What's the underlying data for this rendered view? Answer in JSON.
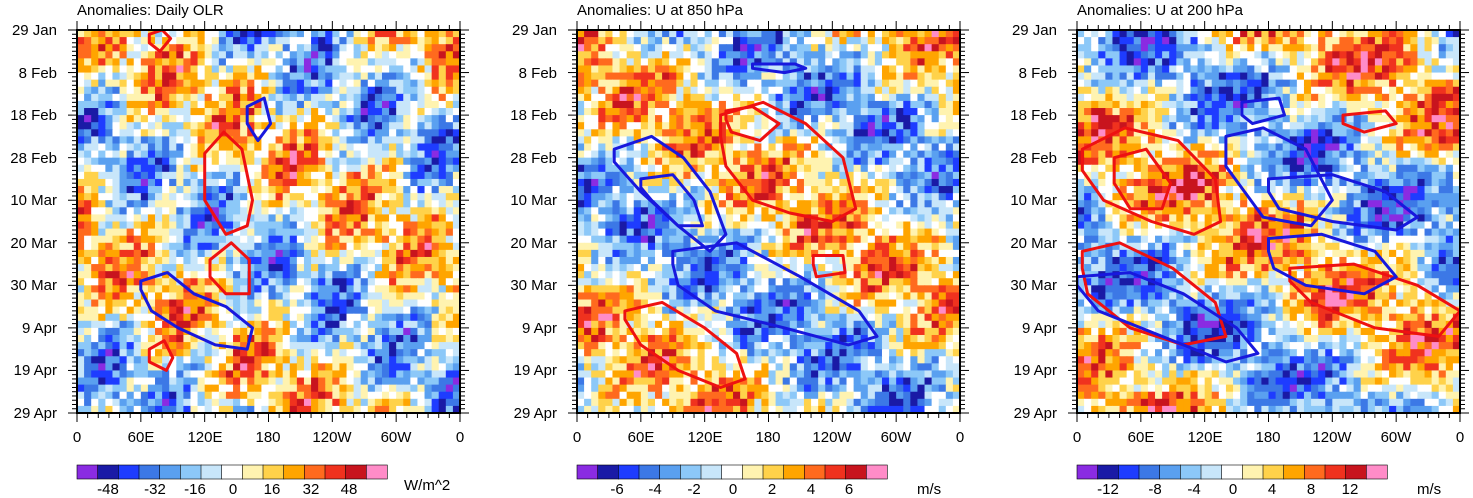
{
  "chart_data": [
    {
      "type": "heatmap",
      "title": "Anomalies: Daily OLR",
      "xlabel": "",
      "ylabel": "",
      "x_tick_labels": [
        "0",
        "60E",
        "120E",
        "180",
        "120W",
        "60W",
        "0"
      ],
      "y_tick_labels": [
        "29 Jan",
        "8 Feb",
        "18 Feb",
        "28 Feb",
        "10 Mar",
        "20 Mar",
        "30 Mar",
        "9 Apr",
        "19 Apr",
        "29 Apr"
      ],
      "colorbar": {
        "tick_labels": [
          "-48",
          "-32",
          "-16",
          "0",
          "16",
          "32",
          "48"
        ],
        "units": "W/m^2",
        "levels": [
          -56,
          -48,
          -40,
          -32,
          -24,
          -16,
          -8,
          0,
          8,
          16,
          24,
          32,
          40,
          48,
          56
        ]
      },
      "contours": {
        "red": [
          {
            "lon": [
              120,
              138,
              155,
              165,
              160,
              140,
              120
            ],
            "day": [
              29,
              24,
              28,
              40,
              46,
              48,
              40
            ]
          },
          {
            "lon": [
              125,
              145,
              162,
              162,
              140,
              125
            ],
            "day": [
              54,
              50,
              54,
              62,
              62,
              58
            ]
          },
          {
            "lon": [
              68,
              80,
              88,
              78,
              68
            ],
            "day": [
              1,
              0,
              2,
              5,
              3
            ]
          },
          {
            "lon": [
              68,
              82,
              90,
              84,
              68
            ],
            "day": [
              75,
              73,
              77,
              80,
              78
            ]
          }
        ],
        "blue": [
          {
            "lon": [
              160,
              176,
              182,
              170,
              160
            ],
            "day": [
              18,
              16,
              22,
              26,
              22
            ]
          },
          {
            "lon": [
              60,
              85,
              110,
              140,
              165,
              160,
              130,
              95,
              70,
              60
            ],
            "day": [
              59,
              57,
              62,
              65,
              70,
              75,
              74,
              70,
              66,
              61
            ]
          }
        ]
      }
    },
    {
      "type": "heatmap",
      "title": "Anomalies: U at 850 hPa",
      "xlabel": "",
      "ylabel": "",
      "x_tick_labels": [
        "0",
        "60E",
        "120E",
        "180",
        "120W",
        "60W",
        "0"
      ],
      "y_tick_labels": [
        "29 Jan",
        "8 Feb",
        "18 Feb",
        "28 Feb",
        "10 Mar",
        "20 Mar",
        "30 Mar",
        "9 Apr",
        "19 Apr",
        "29 Apr"
      ],
      "colorbar": {
        "tick_labels": [
          "-6",
          "-4",
          "-2",
          "0",
          "2",
          "4",
          "6"
        ],
        "units": "m/s",
        "levels": [
          -7,
          -6,
          -5,
          -4,
          -3,
          -2,
          -1,
          0,
          1,
          2,
          3,
          4,
          5,
          6,
          7
        ]
      },
      "contours": {
        "red": [
          {
            "lon": [
              135,
              175,
              215,
              250,
              262,
              240,
              200,
              165,
              140,
              135
            ],
            "day": [
              20,
              17,
              22,
              30,
              42,
              45,
              43,
              40,
              32,
              25
            ]
          },
          {
            "lon": [
              140,
              165,
              190,
              172,
              145,
              140
            ],
            "day": [
              19,
              18,
              22,
              26,
              24,
              21
            ]
          },
          {
            "lon": [
              45,
              80,
              120,
              150,
              158,
              135,
              95,
              60,
              45
            ],
            "day": [
              66,
              64,
              70,
              76,
              82,
              84,
              80,
              74,
              68
            ]
          },
          {
            "lon": [
              222,
              250,
              252,
              225,
              222
            ],
            "day": [
              53,
              53,
              57,
              58,
              55
            ]
          }
        ],
        "blue": [
          {
            "lon": [
              35,
              70,
              100,
              125,
              140,
              125,
              95,
              60,
              35
            ],
            "day": [
              28,
              25,
              30,
              38,
              48,
              52,
              46,
              38,
              31
            ]
          },
          {
            "lon": [
              60,
              90,
              110,
              118,
              95,
              70,
              60
            ],
            "day": [
              35,
              34,
              40,
              46,
              46,
              40,
              37
            ]
          },
          {
            "lon": [
              90,
              150,
              210,
              265,
              282,
              255,
              195,
              130,
              95,
              90
            ],
            "day": [
              52,
              50,
              58,
              66,
              72,
              74,
              70,
              66,
              60,
              55
            ]
          },
          {
            "lon": [
              165,
              205,
              215,
              195,
              165
            ],
            "day": [
              8,
              8,
              9,
              10,
              9
            ]
          }
        ]
      }
    },
    {
      "type": "heatmap",
      "title": "Anomalies: U at 200 hPa",
      "xlabel": "",
      "ylabel": "",
      "x_tick_labels": [
        "0",
        "60E",
        "120E",
        "180",
        "120W",
        "60W",
        "0"
      ],
      "y_tick_labels": [
        "29 Jan",
        "8 Feb",
        "18 Feb",
        "28 Feb",
        "10 Mar",
        "20 Mar",
        "30 Mar",
        "9 Apr",
        "19 Apr",
        "29 Apr"
      ],
      "colorbar": {
        "tick_labels": [
          "-12",
          "-8",
          "-4",
          "0",
          "4",
          "8",
          "12"
        ],
        "units": "m/s",
        "levels": [
          -14,
          -12,
          -10,
          -8,
          -6,
          -4,
          -2,
          0,
          2,
          4,
          6,
          8,
          10,
          12,
          14
        ]
      },
      "contours": {
        "red": [
          {
            "lon": [
              5,
              45,
              95,
              130,
              135,
              110,
              70,
              25,
              5
            ],
            "day": [
              28,
              23,
              26,
              35,
              45,
              48,
              45,
              40,
              33
            ]
          },
          {
            "lon": [
              35,
              65,
              88,
              80,
              50,
              35
            ],
            "day": [
              30,
              28,
              36,
              42,
              42,
              36
            ]
          },
          {
            "lon": [
              5,
              40,
              90,
              130,
              140,
              100,
              50,
              10,
              5
            ],
            "day": [
              52,
              50,
              56,
              64,
              72,
              74,
              70,
              62,
              56
            ]
          },
          {
            "lon": [
              200,
              260,
              320,
              360,
              340,
              280,
              220,
              200
            ],
            "day": [
              56,
              55,
              60,
              66,
              72,
              70,
              64,
              59
            ]
          },
          {
            "lon": [
              250,
              290,
              300,
              270,
              250
            ],
            "day": [
              20,
              19,
              22,
              24,
              22
            ]
          }
        ],
        "blue": [
          {
            "lon": [
              140,
              175,
              215,
              240,
              220,
              175,
              140
            ],
            "day": [
              25,
              23,
              28,
              40,
              46,
              44,
              32
            ]
          },
          {
            "lon": [
              180,
              240,
              290,
              320,
              300,
              240,
              190,
              180
            ],
            "day": [
              35,
              34,
              38,
              44,
              47,
              45,
              42,
              38
            ]
          },
          {
            "lon": [
              180,
              230,
              280,
              300,
              270,
              215,
              185,
              180
            ],
            "day": [
              49,
              48,
              52,
              58,
              62,
              60,
              56,
              52
            ]
          },
          {
            "lon": [
              0,
              50,
              100,
              150,
              170,
              140,
              80,
              20,
              0
            ],
            "day": [
              58,
              57,
              62,
              70,
              76,
              78,
              72,
              66,
              60
            ]
          },
          {
            "lon": [
              155,
              190,
              195,
              165,
              155
            ],
            "day": [
              17,
              16,
              20,
              22,
              20
            ]
          }
        ]
      }
    }
  ]
}
